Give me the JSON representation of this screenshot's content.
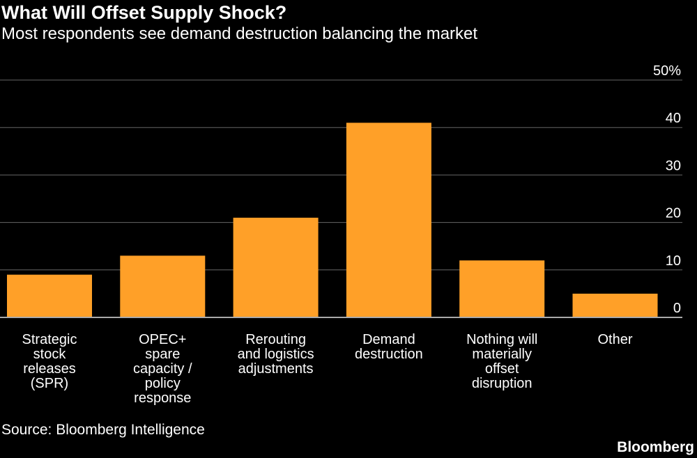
{
  "header": {
    "title": "What Will Offset Supply Shock?",
    "subtitle": "Most respondents see demand destruction balancing the market"
  },
  "footer": {
    "source": "Source: Bloomberg Intelligence",
    "brand": "Bloomberg"
  },
  "colors": {
    "bar": "#FFA028",
    "gridline": "#666666",
    "baseline": "#AAAAAA",
    "text": "#FFFFFF",
    "background": "#000000"
  },
  "chart_data": {
    "type": "bar",
    "title": "What Will Offset Supply Shock?",
    "subtitle": "Most respondents see demand destruction balancing the market",
    "categories": [
      [
        "Strategic",
        "stock",
        "releases",
        "(SPR)"
      ],
      [
        "OPEC+",
        "spare",
        "capacity /",
        "policy",
        "response"
      ],
      [
        "Rerouting",
        "and logistics",
        "adjustments"
      ],
      [
        "Demand",
        "destruction"
      ],
      [
        "Nothing will",
        "materially",
        "offset",
        "disruption"
      ],
      [
        "Other"
      ]
    ],
    "values": [
      9,
      13,
      21,
      41,
      12,
      5
    ],
    "ylim": [
      0,
      50
    ],
    "yticks": [
      {
        "value": 0,
        "label": "0"
      },
      {
        "value": 10,
        "label": "10"
      },
      {
        "value": 20,
        "label": "20"
      },
      {
        "value": 30,
        "label": "30"
      },
      {
        "value": 40,
        "label": "40"
      },
      {
        "value": 50,
        "label": "50%"
      }
    ],
    "y_axis_position": "right",
    "grid": true,
    "legend": "none",
    "source": "Source: Bloomberg Intelligence"
  }
}
